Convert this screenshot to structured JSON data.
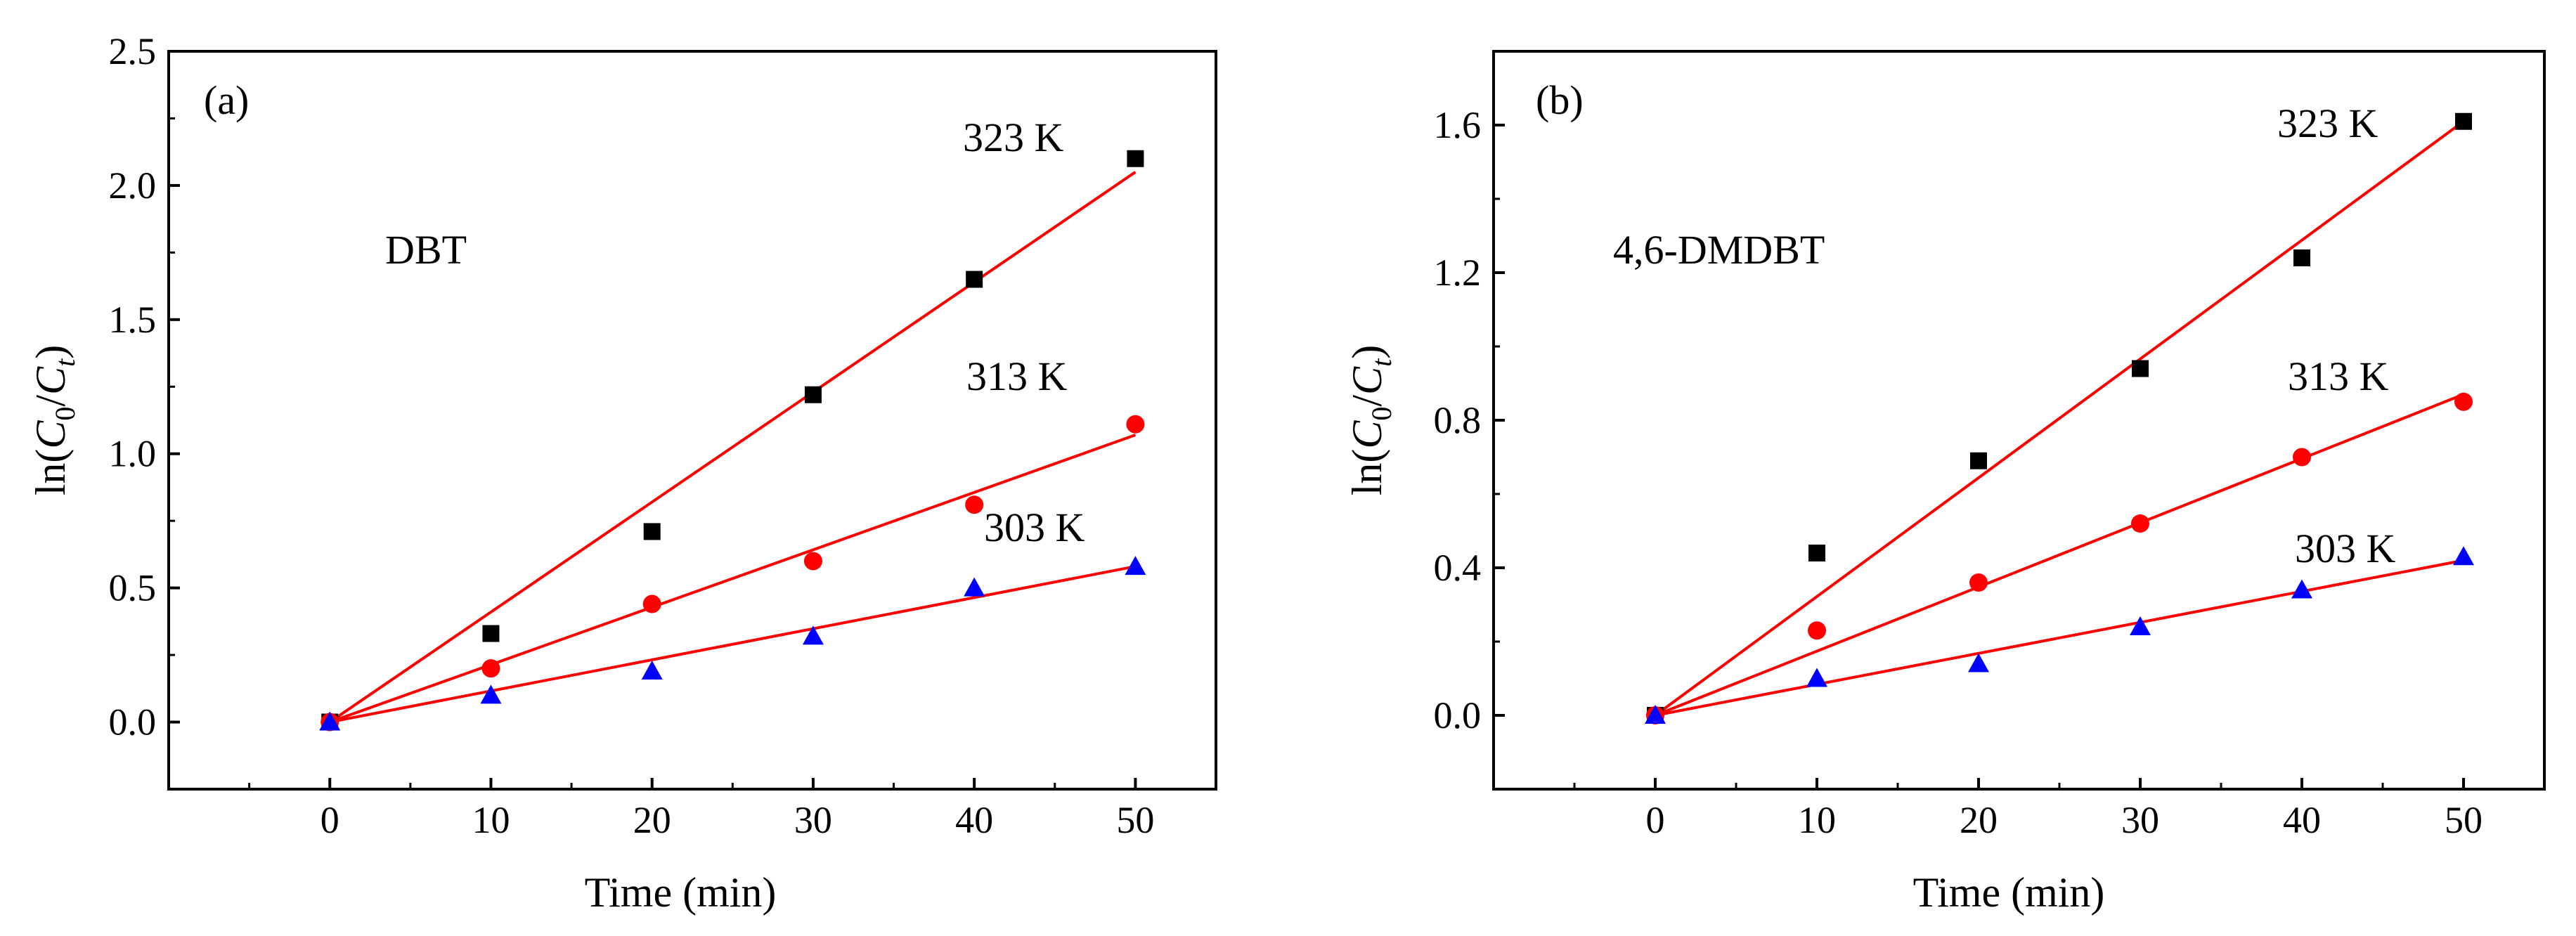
{
  "figure": {
    "panels": [
      "a",
      "b"
    ]
  },
  "colors": {
    "fit_line": "#ff0000",
    "series_323K": "#000000",
    "series_313K": "#ff0000",
    "series_303K": "#0000ff",
    "axis": "#000000"
  },
  "chart_data": [
    {
      "type": "scatter",
      "panel_label": "(a)",
      "compound_label": "DBT",
      "xlabel": "Time (min)",
      "ylabel": {
        "prefix": "ln(",
        "c0": "C",
        "c0_sub": "0",
        "slash": "/",
        "ct": "C",
        "ct_sub": "t",
        "suffix": ")"
      },
      "xlim": [
        -10,
        55
      ],
      "ylim": [
        -0.25,
        2.5
      ],
      "xticks": [
        0,
        10,
        20,
        30,
        40,
        50
      ],
      "yticks": [
        0.0,
        0.5,
        1.0,
        1.5,
        2.0,
        2.5
      ],
      "ytick_labels": [
        "0.0",
        "0.5",
        "1.0",
        "1.5",
        "2.0",
        "2.5"
      ],
      "series": [
        {
          "name": "323 K",
          "marker": "square",
          "color": "#000000",
          "x": [
            0,
            10,
            20,
            30,
            40,
            50
          ],
          "y": [
            0.0,
            0.33,
            0.71,
            1.22,
            1.65,
            2.1
          ],
          "fit": {
            "x": [
              0,
              50
            ],
            "y": [
              0.0,
              2.05
            ]
          }
        },
        {
          "name": "313 K",
          "marker": "circle",
          "color": "#ff0000",
          "x": [
            0,
            10,
            20,
            30,
            40,
            50
          ],
          "y": [
            0.0,
            0.2,
            0.44,
            0.6,
            0.81,
            1.11
          ],
          "fit": {
            "x": [
              0,
              50
            ],
            "y": [
              0.0,
              1.07
            ]
          }
        },
        {
          "name": "303 K",
          "marker": "triangle",
          "color": "#0000ff",
          "x": [
            0,
            10,
            20,
            30,
            40,
            50
          ],
          "y": [
            0.0,
            0.1,
            0.19,
            0.32,
            0.5,
            0.58
          ],
          "fit": {
            "x": [
              0,
              50
            ],
            "y": [
              0.0,
              0.58
            ]
          }
        }
      ]
    },
    {
      "type": "scatter",
      "panel_label": "(b)",
      "compound_label": "4,6-DMDBT",
      "xlabel": "Time (min)",
      "ylabel": {
        "prefix": "ln(",
        "c0": "C",
        "c0_sub": "0",
        "slash": "/",
        "ct": "C",
        "ct_sub": "t",
        "suffix": ")"
      },
      "xlim": [
        -10,
        55
      ],
      "ylim": [
        -0.2,
        1.8
      ],
      "xticks": [
        0,
        10,
        20,
        30,
        40,
        50
      ],
      "yticks": [
        0.0,
        0.4,
        0.8,
        1.2,
        1.6
      ],
      "ytick_labels": [
        "0.0",
        "0.4",
        "0.8",
        "1.2",
        "1.6"
      ],
      "series": [
        {
          "name": "323 K",
          "marker": "square",
          "color": "#000000",
          "x": [
            0,
            10,
            20,
            30,
            40,
            50
          ],
          "y": [
            0.0,
            0.44,
            0.69,
            0.94,
            1.24,
            1.61
          ],
          "fit": {
            "x": [
              0,
              50
            ],
            "y": [
              0.0,
              1.61
            ]
          }
        },
        {
          "name": "313 K",
          "marker": "circle",
          "color": "#ff0000",
          "x": [
            0,
            10,
            20,
            30,
            40,
            50
          ],
          "y": [
            0.0,
            0.23,
            0.36,
            0.52,
            0.7,
            0.85
          ],
          "fit": {
            "x": [
              0,
              50
            ],
            "y": [
              0.0,
              0.87
            ]
          }
        },
        {
          "name": "303 K",
          "marker": "triangle",
          "color": "#0000ff",
          "x": [
            0,
            10,
            20,
            30,
            40,
            50
          ],
          "y": [
            0.0,
            0.1,
            0.14,
            0.24,
            0.34,
            0.43
          ],
          "fit": {
            "x": [
              0,
              50
            ],
            "y": [
              0.0,
              0.42
            ]
          }
        }
      ]
    }
  ]
}
